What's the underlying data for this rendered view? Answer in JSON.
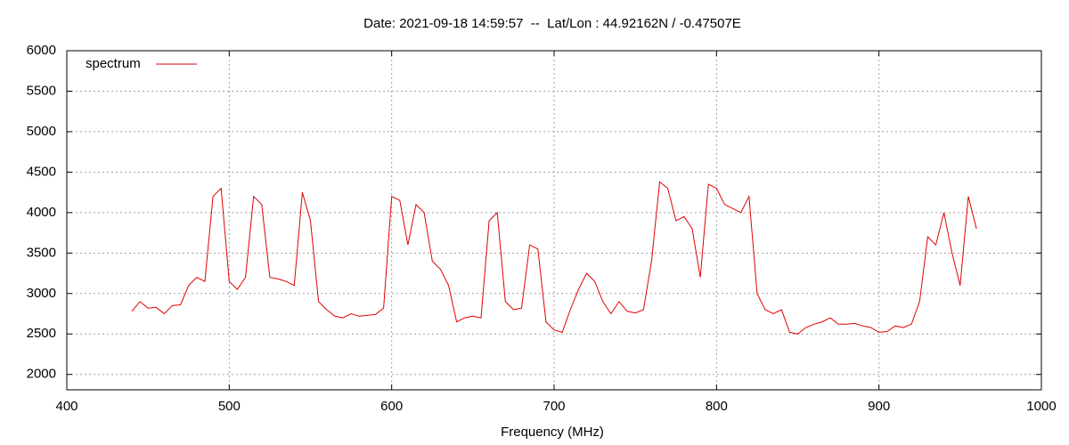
{
  "chart_data": {
    "type": "line",
    "title": "Date: 2021-09-18 14:59:57  --  Lat/Lon : 44.92162N / -0.47507E",
    "x_label": "Frequency (MHz)",
    "xlim": [
      400,
      1000
    ],
    "xticks": [
      400,
      500,
      600,
      700,
      800,
      900,
      1000
    ],
    "ylim": [
      1810,
      6000
    ],
    "yticks": [
      2000,
      2500,
      3000,
      3500,
      4000,
      4500,
      5000,
      5500,
      6000
    ],
    "grid": true,
    "legend": "upper-left",
    "x": [
      440,
      445,
      450,
      455,
      460,
      465,
      470,
      475,
      480,
      485,
      490,
      495,
      500,
      505,
      510,
      515,
      520,
      525,
      530,
      535,
      540,
      545,
      550,
      555,
      560,
      565,
      570,
      575,
      580,
      585,
      590,
      595,
      600,
      605,
      610,
      615,
      620,
      625,
      630,
      635,
      640,
      645,
      650,
      655,
      660,
      665,
      670,
      675,
      680,
      685,
      690,
      695,
      700,
      705,
      710,
      715,
      720,
      725,
      730,
      735,
      740,
      745,
      750,
      755,
      760,
      765,
      770,
      775,
      780,
      785,
      790,
      795,
      800,
      805,
      810,
      815,
      820,
      825,
      830,
      835,
      840,
      845,
      850,
      855,
      860,
      865,
      870,
      875,
      880,
      885,
      890,
      895,
      900,
      905,
      910,
      915,
      920,
      925,
      930,
      935,
      940,
      945,
      950,
      955,
      960
    ],
    "series": [
      {
        "name": "spectrum",
        "color": "#e00000",
        "values": [
          2780,
          2900,
          2820,
          2830,
          2750,
          2850,
          2860,
          3100,
          3200,
          3150,
          4200,
          4300,
          3150,
          3050,
          3200,
          4200,
          4100,
          3200,
          3180,
          3150,
          3100,
          4250,
          3900,
          2900,
          2800,
          2720,
          2700,
          2750,
          2720,
          2730,
          2740,
          2820,
          4200,
          4150,
          3600,
          4100,
          4000,
          3400,
          3300,
          3100,
          2650,
          2700,
          2720,
          2700,
          3900,
          4000,
          2900,
          2800,
          2820,
          3600,
          3550,
          2650,
          2550,
          2520,
          2800,
          3050,
          3250,
          3150,
          2900,
          2750,
          2900,
          2780,
          2760,
          2800,
          3400,
          4380,
          4300,
          3900,
          3950,
          3800,
          3200,
          4350,
          4300,
          4100,
          4050,
          4000,
          4200,
          3000,
          2800,
          2750,
          2800,
          2520,
          2500,
          2580,
          2620,
          2650,
          2700,
          2620,
          2620,
          2630,
          2600,
          2580,
          2520,
          2530,
          2600,
          2580,
          2620,
          2900,
          3700,
          3600,
          4000,
          3500,
          3100,
          4200,
          3800
        ]
      }
    ]
  }
}
